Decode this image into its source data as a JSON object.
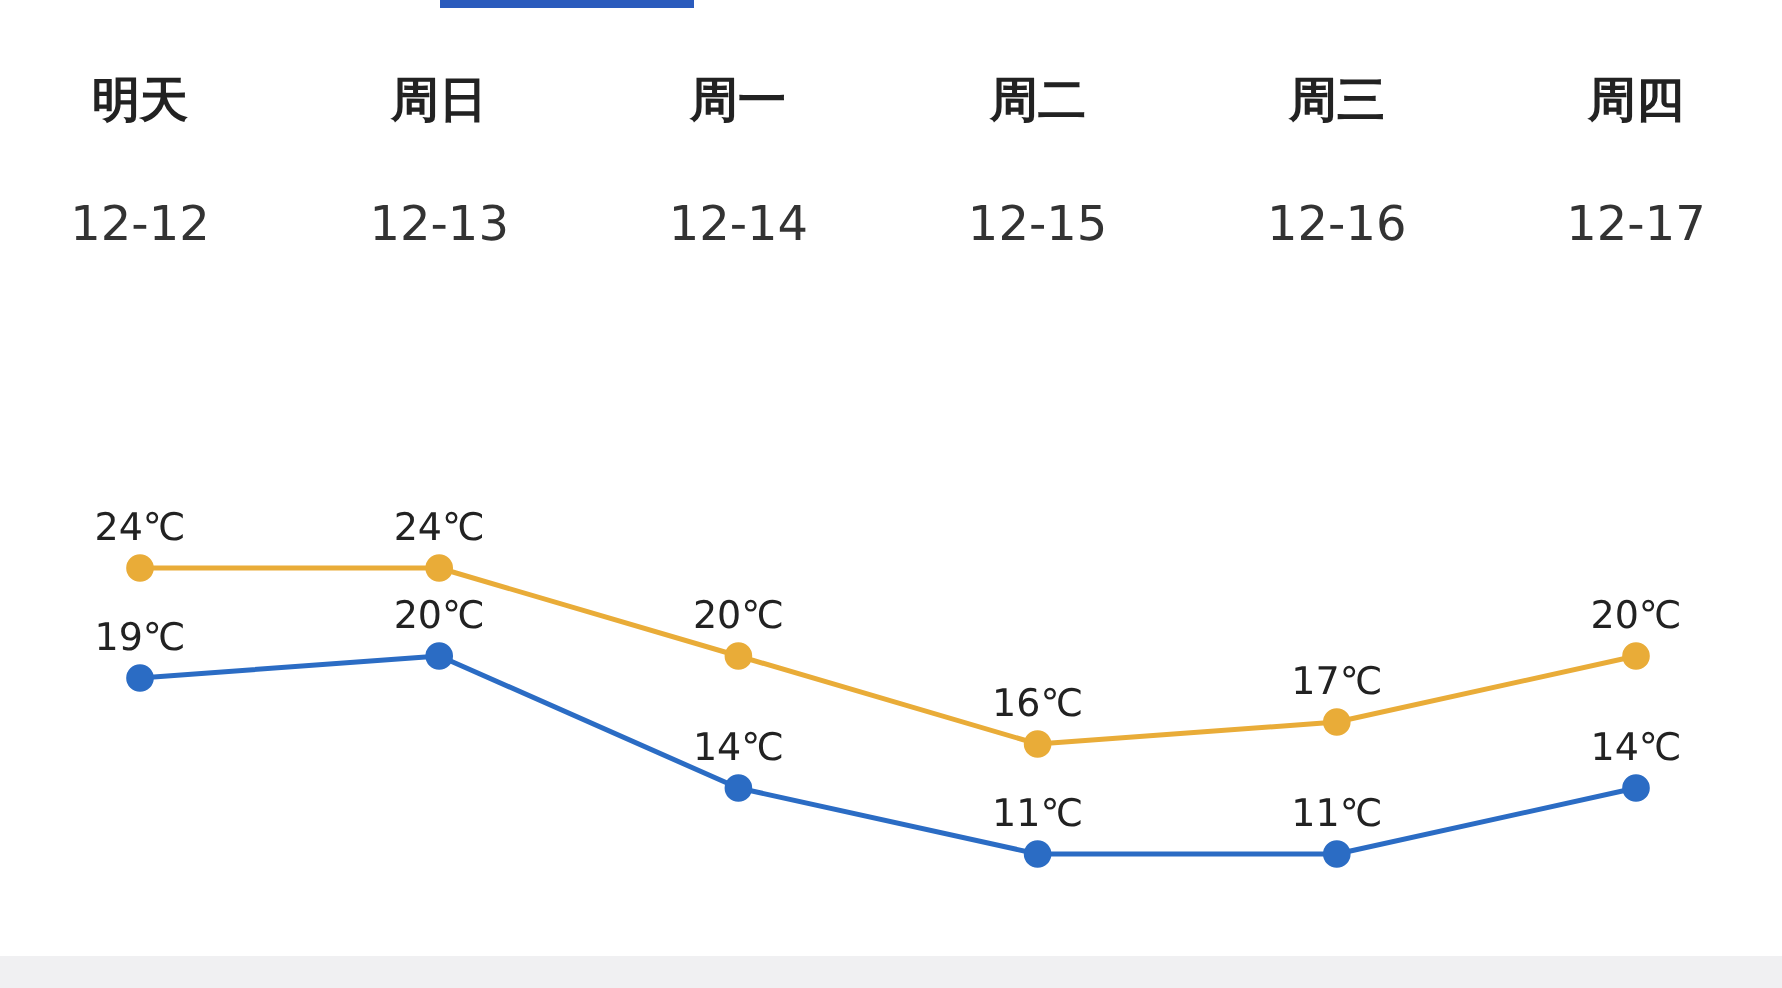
{
  "chart_data": {
    "type": "line",
    "categories": [
      "明天\n12-12",
      "周日\n12-13",
      "周一\n12-14",
      "周二\n12-15",
      "周三\n12-16",
      "周四\n12-17"
    ],
    "series": [
      {
        "color": "#e9ac38",
        "values": [
          24,
          24,
          20,
          16,
          17,
          20
        ],
        "value_labels": [
          "24℃",
          "24℃",
          "20℃",
          "16℃",
          "17℃",
          "20℃"
        ]
      },
      {
        "color": "#2b6cc4",
        "values": [
          19,
          20,
          14,
          11,
          11,
          14
        ],
        "value_labels": [
          "19℃",
          "20℃",
          "14℃",
          "11℃",
          "11℃",
          "14℃"
        ]
      }
    ],
    "marker": "circle",
    "line_style": "solid"
  }
}
